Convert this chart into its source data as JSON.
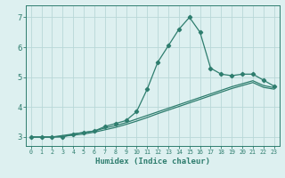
{
  "xlabel": "Humidex (Indice chaleur)",
  "bg_color": "#ddf0f0",
  "grid_color": "#b8d8d8",
  "line_color": "#2e7d6e",
  "x_values": [
    0,
    1,
    2,
    3,
    4,
    5,
    6,
    7,
    8,
    9,
    10,
    11,
    12,
    13,
    14,
    15,
    16,
    17,
    18,
    19,
    20,
    21,
    22,
    23
  ],
  "line1_y": [
    3.0,
    3.0,
    3.0,
    3.0,
    3.1,
    3.15,
    3.2,
    3.35,
    3.45,
    3.55,
    3.85,
    4.6,
    5.5,
    6.05,
    6.6,
    7.0,
    6.5,
    5.3,
    5.1,
    5.05,
    5.1,
    5.1,
    4.9,
    4.7
  ],
  "line2_y": [
    3.0,
    3.0,
    3.0,
    3.05,
    3.1,
    3.15,
    3.2,
    3.3,
    3.38,
    3.48,
    3.6,
    3.72,
    3.84,
    3.96,
    4.08,
    4.2,
    4.32,
    4.44,
    4.56,
    4.68,
    4.78,
    4.88,
    4.72,
    4.65
  ],
  "line3_y": [
    3.0,
    3.0,
    3.0,
    3.02,
    3.06,
    3.1,
    3.16,
    3.24,
    3.32,
    3.42,
    3.53,
    3.65,
    3.78,
    3.9,
    4.02,
    4.14,
    4.26,
    4.38,
    4.5,
    4.62,
    4.72,
    4.82,
    4.66,
    4.6
  ],
  "xlim": [
    -0.5,
    23.5
  ],
  "ylim": [
    2.7,
    7.4
  ],
  "yticks": [
    3,
    4,
    5,
    6,
    7
  ],
  "xticks": [
    0,
    1,
    2,
    3,
    4,
    5,
    6,
    7,
    8,
    9,
    10,
    11,
    12,
    13,
    14,
    15,
    16,
    17,
    18,
    19,
    20,
    21,
    22,
    23
  ]
}
